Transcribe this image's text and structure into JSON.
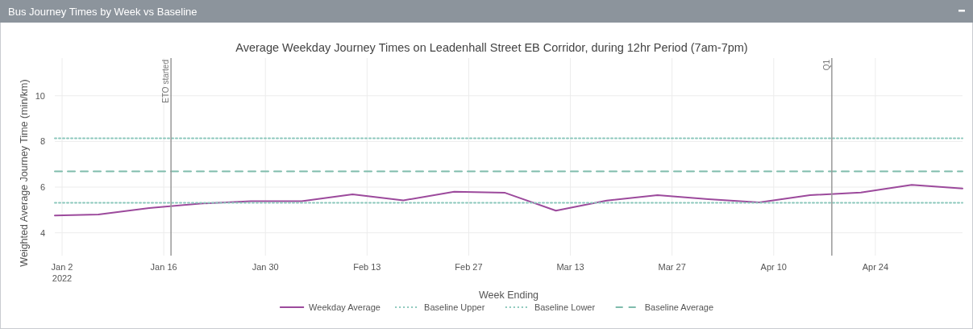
{
  "chart_data": {
    "type": "line",
    "title": "Bus Journey Times by Week vs Baseline",
    "subtitle": "Average Weekday Journey Times on Leadenhall Street EB Corridor, during 12hr Period (7am-7pm)",
    "xlabel": "Week Ending",
    "ylabel": "Weighted Average Journey Time (min/km)",
    "x": [
      "2022-01-01",
      "2022-01-07",
      "2022-01-14",
      "2022-01-21",
      "2022-01-28",
      "2022-02-04",
      "2022-02-11",
      "2022-02-18",
      "2022-02-25",
      "2022-03-04",
      "2022-03-11",
      "2022-03-18",
      "2022-03-25",
      "2022-04-01",
      "2022-04-08",
      "2022-04-15",
      "2022-04-22",
      "2022-04-29",
      "2022-05-06"
    ],
    "series": [
      {
        "name": "Weekday Average",
        "color": "#9c4a9c",
        "line_style": "solid",
        "values": [
          4.76,
          4.8,
          5.08,
          5.28,
          5.38,
          5.38,
          5.68,
          5.42,
          5.8,
          5.75,
          4.97,
          5.41,
          5.65,
          5.47,
          5.33,
          5.65,
          5.76,
          6.1,
          5.94
        ]
      },
      {
        "name": "Baseline Upper",
        "color": "#8cc8bc",
        "line_style": "dotted",
        "x": [
          "2022-01-01",
          "2022-05-06"
        ],
        "values": [
          8.14,
          8.14
        ]
      },
      {
        "name": "Baseline Lower",
        "color": "#8cc8bc",
        "line_style": "dotted",
        "x": [
          "2022-01-01",
          "2022-05-06"
        ],
        "values": [
          5.31,
          5.31
        ]
      },
      {
        "name": "Baseline Average",
        "color": "#7fbcac",
        "line_style": "dashed",
        "x": [
          "2022-01-01",
          "2022-05-06"
        ],
        "values": [
          6.69,
          6.69
        ]
      }
    ],
    "xlim": [
      "2022-01-01",
      "2022-05-06"
    ],
    "xticks": [
      {
        "value": "2022-01-02",
        "label": "Jan 2\n2022"
      },
      {
        "value": "2022-01-16",
        "label": "Jan 16"
      },
      {
        "value": "2022-01-30",
        "label": "Jan 30"
      },
      {
        "value": "2022-02-13",
        "label": "Feb 13"
      },
      {
        "value": "2022-02-27",
        "label": "Feb 27"
      },
      {
        "value": "2022-03-13",
        "label": "Mar 13"
      },
      {
        "value": "2022-03-27",
        "label": "Mar 27"
      },
      {
        "value": "2022-04-10",
        "label": "Apr 10"
      },
      {
        "value": "2022-04-24",
        "label": "Apr 24"
      }
    ],
    "ylim": [
      3,
      11.65
    ],
    "yticks": [
      4,
      6,
      8,
      10
    ],
    "ref_lines": [
      {
        "axis": "x",
        "value": "2022-01-17",
        "label": "ETO started",
        "color": "#999999"
      },
      {
        "axis": "x",
        "value": "2022-04-18",
        "label": "Q1",
        "color": "#999999"
      }
    ],
    "grid": true,
    "legend": "bottom"
  }
}
